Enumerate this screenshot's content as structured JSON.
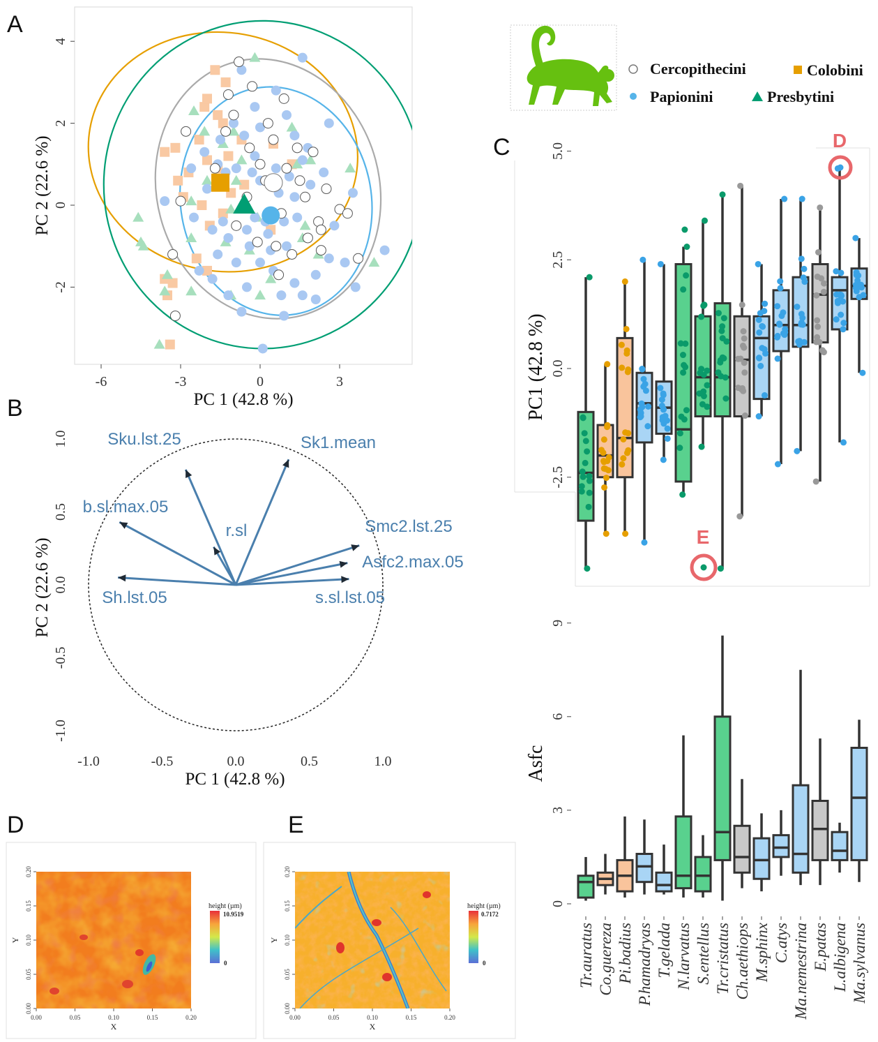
{
  "panel_labels": {
    "a": "A",
    "b": "B",
    "c": "C",
    "d": "D",
    "e": "E"
  },
  "legend": {
    "items": [
      {
        "label": "Cercopithecini",
        "color": "#ffffff",
        "stroke": "#7a7a7a",
        "shape": "open-circle"
      },
      {
        "label": "Colobini",
        "color": "#E69F00",
        "shape": "square"
      },
      {
        "label": "Papionini",
        "color": "#56B4E9",
        "shape": "circle"
      },
      {
        "label": "Presbytini",
        "color": "#009E73",
        "shape": "triangle"
      }
    ],
    "icon": "monkey-silhouette-icon",
    "icon_color": "#66c010"
  },
  "colors": {
    "cercopithecini": "#aaaaaa",
    "colobini": "#E69F00",
    "papionini": "#56B4E9",
    "presbytini": "#009E73",
    "vector": "#4a7fad",
    "highlight": "#e8676b",
    "box_line": "#333333"
  },
  "chart_data": [
    {
      "id": "A",
      "type": "scatter",
      "xlabel": "PC 1 (42.8 %)",
      "ylabel": "PC 2 (22.6 %)",
      "xlim": [
        -6.5,
        6.0
      ],
      "ylim": [
        -3.8,
        4.8
      ],
      "xticks": [
        "-6",
        "-3",
        "0",
        "3"
      ],
      "yticks": [
        "-2",
        "0",
        "2",
        "4"
      ],
      "centroids": [
        {
          "group": "Colobini",
          "x": -1.5,
          "y": 0.55
        },
        {
          "group": "Presbytini",
          "x": -0.6,
          "y": 0.0
        },
        {
          "group": "Cercopithecini",
          "x": 0.5,
          "y": 0.55
        },
        {
          "group": "Papionini",
          "x": 0.4,
          "y": -0.25
        }
      ],
      "ellipses": [
        {
          "group": "Colobini",
          "cx": -1.4,
          "cy": 1.3,
          "rx": 4.5,
          "ry": 3.3,
          "rotation_deg": -80
        },
        {
          "group": "Cercopithecini",
          "cx": 0.3,
          "cy": 0.4,
          "rx": 4.2,
          "ry": 3.2,
          "rotation_deg": -15
        },
        {
          "group": "Presbytini",
          "cx": 0.1,
          "cy": 0.5,
          "rx": 6.0,
          "ry": 4.0,
          "rotation_deg": 0
        },
        {
          "group": "Papionini",
          "cx": 0.6,
          "cy": 0.1,
          "rx": 3.6,
          "ry": 2.8,
          "rotation_deg": -10
        }
      ],
      "cercopithecini_points": [
        [
          -0.8,
          3.5
        ],
        [
          -1.2,
          2.7
        ],
        [
          -0.3,
          2.9
        ],
        [
          -1.0,
          2.2
        ],
        [
          -2.8,
          1.8
        ],
        [
          -3.0,
          0.1
        ],
        [
          0.3,
          2.0
        ],
        [
          0.5,
          1.6
        ],
        [
          1.4,
          1.4
        ],
        [
          -0.4,
          1.4
        ],
        [
          0.2,
          0.6
        ],
        [
          1.0,
          0.9
        ],
        [
          1.5,
          0.6
        ],
        [
          2.5,
          0.4
        ],
        [
          3.0,
          -0.1
        ],
        [
          2.2,
          -0.4
        ],
        [
          1.8,
          -0.8
        ],
        [
          2.3,
          -1.1
        ],
        [
          1.2,
          -1.2
        ],
        [
          0.6,
          -1.0
        ],
        [
          -0.1,
          -0.9
        ],
        [
          0.7,
          -1.7
        ],
        [
          -0.9,
          -0.5
        ],
        [
          -0.5,
          0.2
        ],
        [
          0.0,
          1.0
        ],
        [
          -1.3,
          1.8
        ],
        [
          -1.7,
          0.9
        ],
        [
          0.9,
          2.6
        ],
        [
          2.0,
          1.3
        ],
        [
          -3.2,
          -2.7
        ],
        [
          -3.3,
          -1.2
        ],
        [
          2.3,
          -0.6
        ],
        [
          3.7,
          -1.3
        ],
        [
          3.3,
          -0.2
        ],
        [
          0.8,
          -0.2
        ],
        [
          1.7,
          0.2
        ]
      ],
      "colobini_points": [
        [
          -1.7,
          3.3
        ],
        [
          -1.3,
          3.0
        ],
        [
          -2.1,
          2.4
        ],
        [
          -1.6,
          2.2
        ],
        [
          -1.4,
          2.0
        ],
        [
          -2.3,
          1.6
        ],
        [
          -0.7,
          1.6
        ],
        [
          -3.2,
          1.4
        ],
        [
          -2.0,
          1.1
        ],
        [
          -1.6,
          0.9
        ],
        [
          -2.7,
          0.8
        ],
        [
          -3.1,
          0.6
        ],
        [
          -2.9,
          0.2
        ],
        [
          -1.1,
          0.3
        ],
        [
          -2.2,
          0.0
        ],
        [
          -1.4,
          -0.2
        ],
        [
          -0.6,
          0.5
        ],
        [
          0.5,
          1.5
        ],
        [
          1.2,
          1.0
        ],
        [
          -1.9,
          -0.5
        ],
        [
          -2.4,
          -1.3
        ],
        [
          -2.0,
          -1.6
        ],
        [
          -3.6,
          -1.8
        ],
        [
          -3.3,
          -1.9
        ],
        [
          -3.5,
          -2.2
        ],
        [
          0.4,
          -0.6
        ],
        [
          -3.4,
          -3.4
        ],
        [
          -2.0,
          2.6
        ],
        [
          -1.2,
          1.2
        ],
        [
          -3.6,
          1.3
        ]
      ],
      "papionini_points": [
        [
          1.6,
          3.6
        ],
        [
          -0.7,
          3.3
        ],
        [
          0.6,
          2.8
        ],
        [
          -0.2,
          2.4
        ],
        [
          1.0,
          2.2
        ],
        [
          -1.0,
          2.0
        ],
        [
          -2.1,
          1.3
        ],
        [
          -1.5,
          1.6
        ],
        [
          -0.6,
          1.7
        ],
        [
          0.0,
          1.9
        ],
        [
          1.3,
          1.7
        ],
        [
          1.8,
          1.4
        ],
        [
          -2.6,
          0.9
        ],
        [
          -3.6,
          0.1
        ],
        [
          -1.3,
          0.8
        ],
        [
          -0.9,
          0.9
        ],
        [
          0.0,
          0.6
        ],
        [
          0.6,
          0.9
        ],
        [
          1.1,
          0.7
        ],
        [
          1.9,
          0.5
        ],
        [
          2.4,
          0.8
        ],
        [
          3.5,
          0.3
        ],
        [
          -2.5,
          -0.3
        ],
        [
          -1.8,
          -0.6
        ],
        [
          -1.2,
          -0.8
        ],
        [
          -0.5,
          -0.6
        ],
        [
          -0.2,
          -0.3
        ],
        [
          0.3,
          -0.7
        ],
        [
          0.9,
          -0.4
        ],
        [
          1.4,
          -0.3
        ],
        [
          2.6,
          -1.3
        ],
        [
          3.2,
          -1.4
        ],
        [
          4.7,
          -1.1
        ],
        [
          -2.3,
          -1.6
        ],
        [
          -1.6,
          -1.2
        ],
        [
          -0.9,
          -1.4
        ],
        [
          0.0,
          -1.4
        ],
        [
          0.5,
          -1.6
        ],
        [
          1.3,
          -1.9
        ],
        [
          1.6,
          -2.2
        ],
        [
          2.1,
          -2.3
        ],
        [
          0.8,
          -2.2
        ],
        [
          -0.5,
          -2.0
        ],
        [
          -1.2,
          -2.2
        ],
        [
          -1.8,
          -1.8
        ],
        [
          0.9,
          -2.7
        ],
        [
          -0.7,
          -2.6
        ],
        [
          0.1,
          -3.5
        ],
        [
          -0.4,
          -1.0
        ],
        [
          0.4,
          -1.1
        ],
        [
          1.0,
          -1.0
        ],
        [
          -1.4,
          -0.4
        ],
        [
          0.7,
          0.3
        ],
        [
          -0.3,
          0.8
        ],
        [
          1.6,
          1.1
        ],
        [
          2.8,
          -0.5
        ],
        [
          3.6,
          -2.0
        ],
        [
          2.6,
          2.0
        ],
        [
          -1.6,
          1.0
        ],
        [
          -0.2,
          1.2
        ],
        [
          0.2,
          -0.4
        ],
        [
          -2.0,
          0.4
        ],
        [
          1.3,
          0.2
        ],
        [
          2.1,
          -1.7
        ]
      ],
      "presbytini_points": [
        [
          -0.2,
          3.6
        ],
        [
          -2.5,
          2.3
        ],
        [
          -1.0,
          1.8
        ],
        [
          -2.1,
          1.8
        ],
        [
          -0.7,
          1.1
        ],
        [
          1.4,
          1.0
        ],
        [
          1.9,
          1.1
        ],
        [
          -1.4,
          1.5
        ],
        [
          3.4,
          0.9
        ],
        [
          -0.9,
          0.6
        ],
        [
          -2.6,
          0.1
        ],
        [
          -1.1,
          -0.1
        ],
        [
          -0.1,
          -0.3
        ],
        [
          1.7,
          -0.5
        ],
        [
          -4.6,
          -0.3
        ],
        [
          -4.5,
          -0.9
        ],
        [
          -4.4,
          -1.0
        ],
        [
          -2.6,
          -0.8
        ],
        [
          -1.3,
          -0.9
        ],
        [
          -0.4,
          -1.1
        ],
        [
          1.6,
          -0.8
        ],
        [
          2.2,
          -1.2
        ],
        [
          -3.5,
          -1.7
        ],
        [
          -3.6,
          -2.1
        ],
        [
          -2.6,
          -2.1
        ],
        [
          -1.1,
          -2.2
        ],
        [
          0.0,
          -2.2
        ],
        [
          4.3,
          -1.4
        ],
        [
          -3.8,
          -3.4
        ],
        [
          1.2,
          1.9
        ],
        [
          -2.0,
          0.6
        ],
        [
          0.4,
          -1.8
        ]
      ]
    },
    {
      "id": "B",
      "type": "scatter",
      "xlabel": "PC 1 (42.8 %)",
      "ylabel": "PC 2 (22.6 %)",
      "xlim": [
        -1.15,
        1.15
      ],
      "ylim": [
        -1.15,
        1.15
      ],
      "xticks": [
        "-1.0",
        "-0.5",
        "0.0",
        "0.5",
        "1.0"
      ],
      "yticks": [
        "-1.0",
        "-0.5",
        "0.0",
        "0.5",
        "1.0"
      ],
      "vectors": [
        {
          "name": "Sku.lst.25",
          "x": -0.34,
          "y": 0.79
        },
        {
          "name": "Sk1.mean",
          "x": 0.36,
          "y": 0.86
        },
        {
          "name": "b.sl.max.05",
          "x": -0.79,
          "y": 0.43
        },
        {
          "name": "r.sl",
          "x": -0.15,
          "y": 0.26
        },
        {
          "name": "Smc2.lst.25",
          "x": 0.84,
          "y": 0.27
        },
        {
          "name": "Asfc2.max.05",
          "x": 0.76,
          "y": 0.15
        },
        {
          "name": "Sh.lst.05",
          "x": -0.8,
          "y": 0.05
        },
        {
          "name": "s.sl.lst.05",
          "x": 0.77,
          "y": 0.04
        }
      ]
    },
    {
      "id": "C-top",
      "type": "box",
      "ylabel": "PC1 (42.8 %)",
      "ylim": [
        -4.8,
        5.4
      ],
      "yticks": [
        "-2.5",
        "0.0",
        "2.5",
        "5.0"
      ],
      "annotations": [
        "D",
        "E"
      ],
      "categories": [
        "Tr.auratus",
        "Co.guereza",
        "Pi.badius",
        "P.hamadryas",
        "T.gelada",
        "N.larvatus",
        "S.entellus",
        "Tr.cristatus",
        "Ch.aethiops",
        "M.sphinx",
        "C.atys",
        "Ma.nemestrina",
        "E.patas",
        "L.albigena",
        "Ma.sylvanus"
      ],
      "tribes": [
        "Presbytini",
        "Colobini",
        "Colobini",
        "Papionini",
        "Papionini",
        "Presbytini",
        "Presbytini",
        "Presbytini",
        "Cercopithecini",
        "Papionini",
        "Papionini",
        "Papionini",
        "Cercopithecini",
        "Papionini",
        "Papionini"
      ],
      "boxes": [
        {
          "min": -4.6,
          "q1": -3.5,
          "median": -2.4,
          "q3": -1.0,
          "max": 2.1
        },
        {
          "min": -3.8,
          "q1": -2.5,
          "median": -2.0,
          "q3": -1.3,
          "max": 0.1
        },
        {
          "min": -3.8,
          "q1": -2.5,
          "median": -1.6,
          "q3": 0.7,
          "max": 2.0
        },
        {
          "min": -4.0,
          "q1": -1.7,
          "median": -0.8,
          "q3": -0.1,
          "max": 2.5
        },
        {
          "min": -2.1,
          "q1": -1.5,
          "median": -0.9,
          "q3": -0.3,
          "max": 2.4
        },
        {
          "min": -2.9,
          "q1": -2.6,
          "median": -1.4,
          "q3": 2.4,
          "max": 2.8
        },
        {
          "min": -1.8,
          "q1": -1.1,
          "median": -0.2,
          "q3": 1.2,
          "max": 3.4
        },
        {
          "min": -4.6,
          "q1": -1.1,
          "median": -0.2,
          "q3": 1.5,
          "max": 4.0
        },
        {
          "min": -3.4,
          "q1": -1.1,
          "median": 0.2,
          "q3": 1.2,
          "max": 4.2
        },
        {
          "min": -1.1,
          "q1": -0.7,
          "median": 0.7,
          "q3": 1.2,
          "max": 2.4
        },
        {
          "min": -2.2,
          "q1": 0.4,
          "median": 1.0,
          "q3": 1.8,
          "max": 3.9
        },
        {
          "min": -1.9,
          "q1": 0.5,
          "median": 1.0,
          "q3": 2.1,
          "max": 3.9
        },
        {
          "min": -2.6,
          "q1": 0.6,
          "median": 1.7,
          "q3": 2.4,
          "max": 3.7
        },
        {
          "min": -1.7,
          "q1": 0.9,
          "median": 1.8,
          "q3": 2.1,
          "max": 4.6
        },
        {
          "min": -0.1,
          "q1": 1.6,
          "median": 1.9,
          "q3": 2.3,
          "max": 3.0
        }
      ]
    },
    {
      "id": "C-bottom",
      "type": "box",
      "ylabel": "Asfc",
      "ylim": [
        -0.5,
        9.5
      ],
      "yticks": [
        "0",
        "3",
        "6",
        "9"
      ],
      "categories": [
        "Tr.auratus",
        "Co.guereza",
        "Pi.badius",
        "P.hamadryas",
        "T.gelada",
        "N.larvatus",
        "S.entellus",
        "Tr.cristatus",
        "Ch.aethiops",
        "M.sphinx",
        "C.atys",
        "Ma.nemestrina",
        "E.patas",
        "L.albigena",
        "Ma.sylvanus"
      ],
      "boxes": [
        {
          "min": 0.1,
          "q1": 0.2,
          "median": 0.7,
          "q3": 0.9,
          "max": 1.5
        },
        {
          "min": 0.3,
          "q1": 0.6,
          "median": 0.8,
          "q3": 1.0,
          "max": 1.6
        },
        {
          "min": 0.2,
          "q1": 0.4,
          "median": 0.9,
          "q3": 1.4,
          "max": 2.8
        },
        {
          "min": 0.3,
          "q1": 0.7,
          "median": 1.2,
          "q3": 1.6,
          "max": 2.7
        },
        {
          "min": 0.3,
          "q1": 0.4,
          "median": 0.6,
          "q3": 1.0,
          "max": 1.9
        },
        {
          "min": 0.2,
          "q1": 0.5,
          "median": 0.9,
          "q3": 2.8,
          "max": 5.4
        },
        {
          "min": 0.2,
          "q1": 0.4,
          "median": 0.9,
          "q3": 1.5,
          "max": 2.2
        },
        {
          "min": 0.1,
          "q1": 1.4,
          "median": 2.3,
          "q3": 6.0,
          "max": 8.6
        },
        {
          "min": 0.5,
          "q1": 1.0,
          "median": 1.5,
          "q3": 2.5,
          "max": 4.0
        },
        {
          "min": 0.4,
          "q1": 0.8,
          "median": 1.4,
          "q3": 2.1,
          "max": 2.9
        },
        {
          "min": 0.9,
          "q1": 1.5,
          "median": 1.8,
          "q3": 2.2,
          "max": 3.0
        },
        {
          "min": 0.6,
          "q1": 1.0,
          "median": 1.6,
          "q3": 3.8,
          "max": 7.5
        },
        {
          "min": 0.6,
          "q1": 1.4,
          "median": 2.4,
          "q3": 3.3,
          "max": 5.3
        },
        {
          "min": 1.0,
          "q1": 1.4,
          "median": 1.7,
          "q3": 2.3,
          "max": 2.6
        },
        {
          "min": 0.7,
          "q1": 1.4,
          "median": 3.4,
          "q3": 5.0,
          "max": 5.9
        }
      ]
    },
    {
      "id": "D",
      "type": "heatmap",
      "xlabel": "X",
      "ylabel": "Y",
      "legend_title": "height (µm)",
      "legend_max": "10.9519",
      "legend_min": "0",
      "xticks": [
        "0.00",
        "0.05",
        "0.10",
        "0.15",
        "0.20"
      ],
      "yticks": [
        "0.00",
        "0.05",
        "0.10",
        "0.15",
        "0.20"
      ]
    },
    {
      "id": "E",
      "type": "heatmap",
      "xlabel": "X",
      "ylabel": "Y",
      "legend_title": "height (µm)",
      "legend_max": "0.7172",
      "legend_min": "0",
      "xticks": [
        "0.00",
        "0.05",
        "0.10",
        "0.15",
        "0.20"
      ],
      "yticks": [
        "0.00",
        "0.05",
        "0.10",
        "0.15",
        "0.20"
      ]
    }
  ]
}
